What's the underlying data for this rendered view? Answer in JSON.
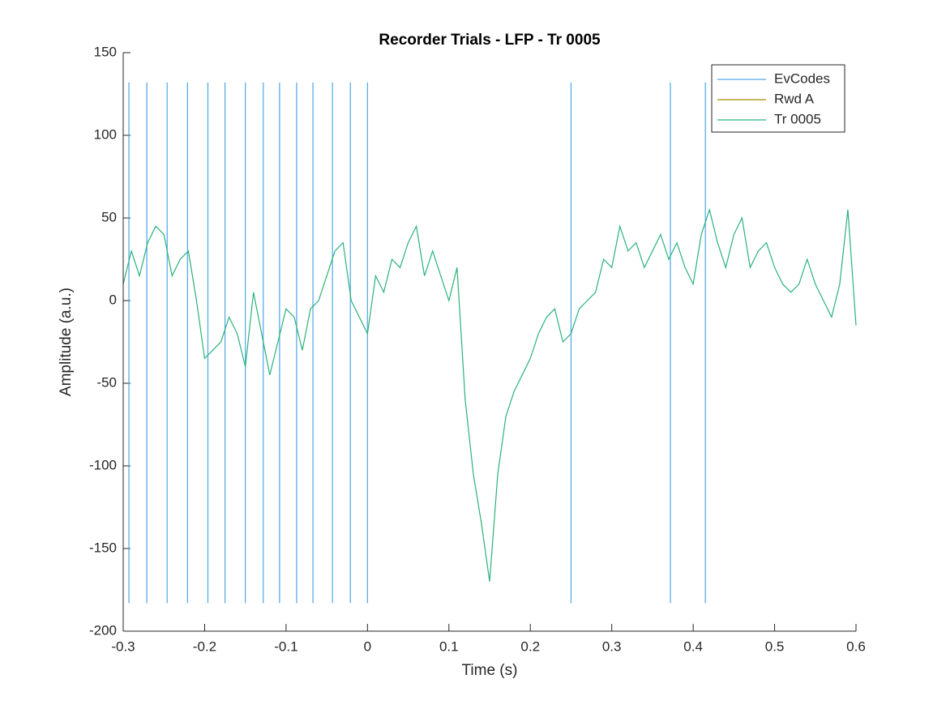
{
  "chart_data": {
    "type": "line",
    "title": "Recorder Trials - LFP - Tr 0005",
    "x_label": "Time (s)",
    "y_label": "Amplitude (a.u.)",
    "xlim": [
      -0.3,
      0.6
    ],
    "xticks": [
      -0.3,
      -0.2,
      -0.1,
      0,
      0.1,
      0.2,
      0.3,
      0.4,
      0.5,
      0.6
    ],
    "ylim": [
      -200,
      150
    ],
    "yticks": [
      -200,
      -150,
      -100,
      -50,
      0,
      50,
      100,
      150
    ],
    "grid": false,
    "legend": "northeast",
    "series": [
      {
        "name": "EvCodes",
        "color": "#4da6e8",
        "style": "vertical",
        "x": [
          -0.293,
          -0.271,
          -0.246,
          -0.221,
          -0.196,
          -0.175,
          -0.15,
          -0.128,
          -0.108,
          -0.087,
          -0.067,
          -0.043,
          -0.021,
          0.0,
          0.25,
          0.372,
          0.415
        ],
        "y_range": [
          -183,
          132
        ]
      },
      {
        "name": "Rwd A",
        "color": "#a08c00",
        "x": [],
        "values": []
      },
      {
        "name": "Tr 0005",
        "color": "#2ab27b",
        "x": [
          -0.3,
          -0.29,
          -0.28,
          -0.27,
          -0.26,
          -0.25,
          -0.24,
          -0.23,
          -0.22,
          -0.21,
          -0.2,
          -0.19,
          -0.18,
          -0.17,
          -0.16,
          -0.15,
          -0.14,
          -0.13,
          -0.12,
          -0.11,
          -0.1,
          -0.09,
          -0.08,
          -0.07,
          -0.06,
          -0.05,
          -0.04,
          -0.03,
          -0.02,
          -0.01,
          0,
          0.01,
          0.02,
          0.03,
          0.04,
          0.05,
          0.06,
          0.07,
          0.08,
          0.09,
          0.1,
          0.11,
          0.12,
          0.13,
          0.14,
          0.15,
          0.16,
          0.17,
          0.18,
          0.19,
          0.2,
          0.21,
          0.22,
          0.23,
          0.24,
          0.25,
          0.26,
          0.27,
          0.28,
          0.29,
          0.3,
          0.31,
          0.32,
          0.33,
          0.34,
          0.35,
          0.36,
          0.37,
          0.38,
          0.39,
          0.4,
          0.41,
          0.42,
          0.43,
          0.44,
          0.45,
          0.46,
          0.47,
          0.48,
          0.49,
          0.5,
          0.51,
          0.52,
          0.53,
          0.54,
          0.55,
          0.56,
          0.57,
          0.58,
          0.59,
          0.6
        ],
        "values": [
          10,
          30,
          15,
          35,
          45,
          40,
          15,
          25,
          30,
          0,
          -35,
          -30,
          -25,
          -10,
          -20,
          -40,
          5,
          -20,
          -45,
          -25,
          -5,
          -10,
          -30,
          -5,
          0,
          15,
          30,
          35,
          0,
          -10,
          -20,
          15,
          5,
          25,
          20,
          35,
          45,
          15,
          30,
          15,
          0,
          20,
          -60,
          -105,
          -135,
          -170,
          -105,
          -70,
          -55,
          -45,
          -35,
          -20,
          -10,
          -5,
          -25,
          -20,
          -5,
          0,
          5,
          25,
          20,
          45,
          30,
          35,
          20,
          30,
          40,
          25,
          35,
          20,
          10,
          40,
          55,
          35,
          20,
          40,
          50,
          20,
          30,
          35,
          20,
          10,
          5,
          10,
          25,
          10,
          0,
          -10,
          10,
          55,
          -15
        ]
      }
    ]
  }
}
